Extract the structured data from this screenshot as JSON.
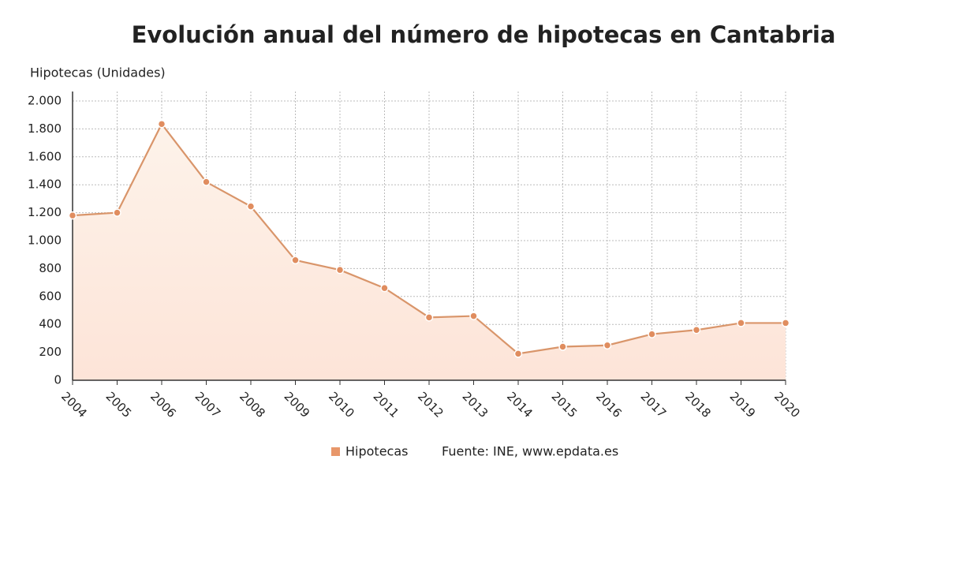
{
  "chart_data": {
    "type": "area",
    "title": "Evolución anual del número de hipotecas en Cantabria",
    "y_label": "Hipotecas (Unidades)",
    "source": "Fuente: INE, www.epdata.es",
    "categories": [
      "2004",
      "2005",
      "2006",
      "2007",
      "2008",
      "2009",
      "2010",
      "2011",
      "2012",
      "2013",
      "2014",
      "2015",
      "2016",
      "2017",
      "2018",
      "2019",
      "2020"
    ],
    "series": [
      {
        "name": "Hipotecas",
        "color": "#d9956a",
        "values": [
          1180,
          1200,
          1835,
          1420,
          1245,
          860,
          790,
          660,
          450,
          460,
          190,
          240,
          250,
          330,
          360,
          410,
          410
        ]
      }
    ],
    "ylim": [
      0,
      2000
    ],
    "yticks": [
      0,
      200,
      400,
      600,
      800,
      {
        "value": 1000,
        "label": "1.000"
      },
      {
        "value": 1200,
        "label": "1.200"
      },
      {
        "value": 1400,
        "label": "1.400"
      },
      {
        "value": 1600,
        "label": "1.600"
      },
      {
        "value": 1800,
        "label": "1.800"
      },
      {
        "value": 2000,
        "label": "2.000"
      }
    ],
    "grid": true
  }
}
